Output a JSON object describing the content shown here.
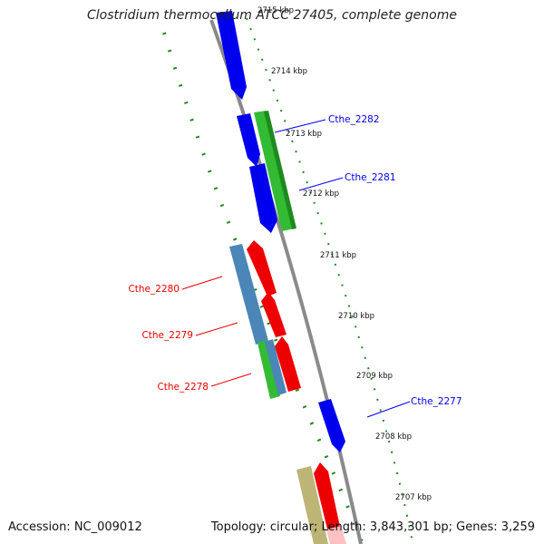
{
  "title": "Clostridium thermocellum ATCC 27405, complete genome",
  "footer": {
    "accession": "Accession: NC_009012",
    "topology": "Topology: circular; Length: 3,843,301 bp; Genes: 3,259"
  },
  "colors": {
    "backbone": "#8a8a8a",
    "tick": "#1f8a1f",
    "forward_gene": "#0000ee",
    "reverse_gene": "#ee0000",
    "green_feature": "#33bb33",
    "steelblue_feature": "#4a86b8",
    "khaki_feature": "#bdb576",
    "pink_feature": "#ffc0c0"
  },
  "ruler_labels": [
    "2715 kbp",
    "2714 kbp",
    "2713 kbp",
    "2712 kbp",
    "2711 kbp",
    "2710 kbp",
    "2709 kbp",
    "2708 kbp",
    "2707 kbp"
  ],
  "gene_labels": [
    {
      "name": "Cthe_2282",
      "strand": "forward"
    },
    {
      "name": "Cthe_2281",
      "strand": "forward"
    },
    {
      "name": "Cthe_2280",
      "strand": "reverse"
    },
    {
      "name": "Cthe_2279",
      "strand": "reverse"
    },
    {
      "name": "Cthe_2278",
      "strand": "reverse"
    },
    {
      "name": "Cthe_2277",
      "strand": "forward"
    }
  ]
}
